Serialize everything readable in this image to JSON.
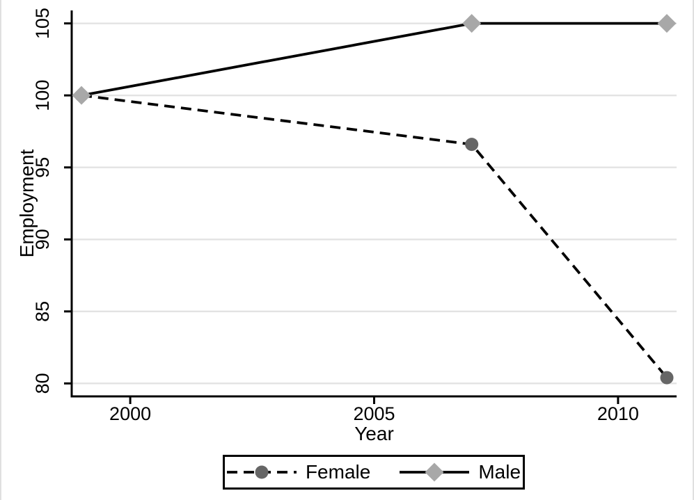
{
  "chart_data": {
    "type": "line",
    "title": "",
    "xlabel": "Year",
    "ylabel": "Employment",
    "x_range": [
      1998.8,
      2011.2
    ],
    "y_range": [
      79.1,
      105.9
    ],
    "x_ticks": [
      2000,
      2005,
      2010
    ],
    "y_ticks": [
      80,
      85,
      90,
      95,
      100,
      105
    ],
    "x": [
      1999,
      2007,
      2011
    ],
    "series": [
      {
        "name": "Female",
        "values": [
          100,
          96.6,
          80.4
        ],
        "line_style": "dashed",
        "marker": "circle",
        "marker_color": "#666666",
        "line_color": "#000000"
      },
      {
        "name": "Male",
        "values": [
          100,
          105,
          105
        ],
        "line_style": "solid",
        "marker": "diamond",
        "marker_color": "#a8a8a8",
        "line_color": "#000000"
      }
    ],
    "grid": true,
    "legend_position": "bottom"
  },
  "colors": {
    "background": "#ffffff",
    "grid": "#e3e3e3",
    "axis": "#000000",
    "text": "#000000",
    "female_marker": "#666666",
    "male_marker": "#a8a8a8",
    "window_edge": "#e0e0e0"
  }
}
